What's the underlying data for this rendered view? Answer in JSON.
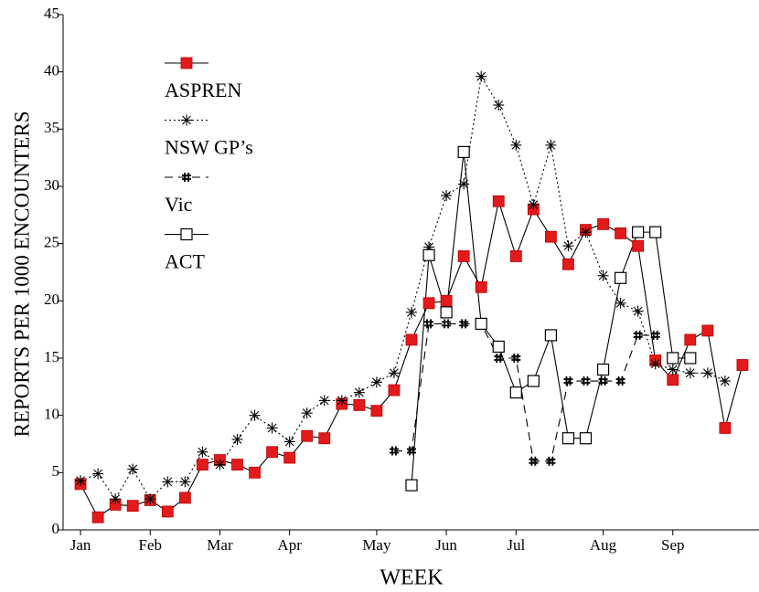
{
  "chart_data": {
    "type": "line",
    "xlabel": "WEEK",
    "ylabel": "REPORTS PER 1000 ENCOUNTERS",
    "x": [
      1,
      2,
      3,
      4,
      5,
      6,
      7,
      8,
      9,
      10,
      11,
      12,
      13,
      14,
      15,
      16,
      17,
      18,
      19,
      20,
      21,
      22,
      23,
      24,
      25,
      26,
      27,
      28,
      29,
      30,
      31,
      32,
      33,
      34,
      35,
      36,
      37,
      38,
      39
    ],
    "xlim": [
      0,
      40
    ],
    "xticks": [
      {
        "value": 1,
        "label": "Jan"
      },
      {
        "value": 5,
        "label": "Feb"
      },
      {
        "value": 9,
        "label": "Mar"
      },
      {
        "value": 13,
        "label": "Apr"
      },
      {
        "value": 18,
        "label": "May"
      },
      {
        "value": 22,
        "label": "Jun"
      },
      {
        "value": 26,
        "label": "Jul"
      },
      {
        "value": 31,
        "label": "Aug"
      },
      {
        "value": 35,
        "label": "Sep"
      }
    ],
    "ylim": [
      0,
      45
    ],
    "yticks": [
      0,
      5,
      10,
      15,
      20,
      25,
      30,
      35,
      40,
      45
    ],
    "legend": "upper left",
    "series": [
      {
        "name": "ASPREN",
        "color": "#000000",
        "marker": "filled-square",
        "marker_color": "#e31a1c",
        "linestyle": "solid",
        "values": [
          4.0,
          1.1,
          2.2,
          2.1,
          2.6,
          1.6,
          2.8,
          5.7,
          6.1,
          5.7,
          5.0,
          6.8,
          6.3,
          8.2,
          8.0,
          11.0,
          10.9,
          10.4,
          12.2,
          16.6,
          19.8,
          20.0,
          23.9,
          21.2,
          28.7,
          23.9,
          28.0,
          25.6,
          23.2,
          26.2,
          26.7,
          25.9,
          24.8,
          14.8,
          13.1,
          16.6,
          17.4,
          8.9,
          14.4
        ]
      },
      {
        "name": "NSW GP’s",
        "color": "#000000",
        "marker": "asterisk",
        "marker_color": "#000000",
        "linestyle": "dotted",
        "values": [
          4.3,
          4.9,
          2.7,
          5.3,
          2.7,
          4.2,
          4.2,
          6.8,
          5.7,
          7.9,
          10.0,
          8.9,
          7.7,
          10.2,
          11.3,
          11.3,
          12.0,
          12.9,
          13.7,
          19.0,
          24.7,
          29.2,
          30.2,
          39.6,
          37.1,
          33.6,
          28.4,
          33.6,
          24.8,
          26.0,
          22.2,
          19.8,
          19.1,
          14.5,
          14.0,
          13.7,
          13.7,
          13.0,
          null
        ]
      },
      {
        "name": "Vic",
        "color": "#000000",
        "marker": "plus",
        "marker_color": "#000000",
        "linestyle": "dashed",
        "values": [
          null,
          null,
          null,
          null,
          null,
          null,
          null,
          null,
          null,
          null,
          null,
          null,
          null,
          null,
          null,
          null,
          null,
          null,
          6.9,
          6.9,
          18.0,
          18.0,
          18.0,
          18.0,
          15.0,
          15.0,
          6.0,
          6.0,
          13.0,
          13.0,
          13.0,
          13.0,
          17.0,
          17.0,
          null,
          null,
          null,
          null,
          null
        ]
      },
      {
        "name": "ACT",
        "color": "#000000",
        "marker": "open-square",
        "marker_color": "#ffffff",
        "linestyle": "solid",
        "values": [
          null,
          null,
          null,
          null,
          null,
          null,
          null,
          null,
          null,
          null,
          null,
          null,
          null,
          null,
          null,
          null,
          null,
          null,
          null,
          3.9,
          24.0,
          19.0,
          33.0,
          18.0,
          16.0,
          12.0,
          13.0,
          17.0,
          8.0,
          8.0,
          14.0,
          22.0,
          26.0,
          26.0,
          15.0,
          15.0,
          null,
          null,
          null
        ]
      }
    ]
  }
}
